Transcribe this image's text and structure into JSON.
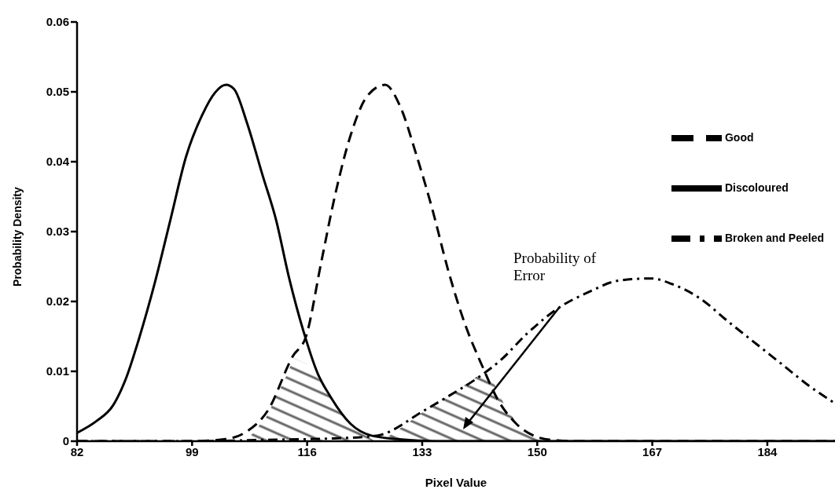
{
  "chart_data": {
    "type": "line",
    "xlabel": "Pixel Value",
    "ylabel": "Probability Density",
    "xlim": [
      82,
      194
    ],
    "xticks": [
      82,
      99,
      116,
      133,
      150,
      167,
      184
    ],
    "ylim": [
      0,
      0.06
    ],
    "yticks": [
      0,
      0.01,
      0.02,
      0.03,
      0.04,
      0.05,
      0.06
    ],
    "grid": false,
    "legend": "top right",
    "marker": "none",
    "series": [
      {
        "name": "Good",
        "color": "#000000",
        "line_style": "dashed",
        "x": [
          82,
          99,
          104,
          107.1,
          110.2,
          113.9,
          115.8,
          118.1,
          120.1,
          122.4,
          124.8,
          127.5,
          129.8,
          132.1,
          134.5,
          136.8,
          139.2,
          141.9,
          144.2,
          146.9,
          150,
          153,
          156,
          194
        ],
        "values": [
          0,
          0,
          0.0003,
          0.0014,
          0.0044,
          0.0122,
          0.0149,
          0.0257,
          0.0351,
          0.0437,
          0.0493,
          0.051,
          0.0478,
          0.0411,
          0.0332,
          0.0246,
          0.0171,
          0.0107,
          0.0059,
          0.0025,
          0.0006,
          0.0001,
          0,
          0
        ]
      },
      {
        "name": "Discoloured",
        "color": "#000000",
        "line_style": "solid",
        "x": [
          82,
          84.9,
          87.3,
          89.2,
          91.1,
          93.5,
          95.8,
          98.1,
          100.5,
          102.4,
          104,
          105.2,
          107.1,
          109.4,
          111.4,
          113.3,
          115.5,
          117.6,
          119.3,
          122.4,
          125.5,
          129.4,
          135,
          194
        ],
        "values": [
          0.0012,
          0.0029,
          0.0051,
          0.0089,
          0.0145,
          0.0227,
          0.0317,
          0.0407,
          0.0467,
          0.0499,
          0.051,
          0.0504,
          0.0456,
          0.0381,
          0.0317,
          0.0235,
          0.0156,
          0.0096,
          0.0066,
          0.0025,
          0.0008,
          0.0003,
          0,
          0
        ]
      },
      {
        "name": "Broken and Peeled",
        "color": "#000000",
        "line_style": "dashdot",
        "x": [
          82,
          100,
          110,
          120,
          126.3,
          133.3,
          136.8,
          141.1,
          144.6,
          148.5,
          153.2,
          157.5,
          162.1,
          166.8,
          169.9,
          173.8,
          178.5,
          182.4,
          186.3,
          190.2,
          193.7
        ],
        "values": [
          0,
          0,
          0.0002,
          0.0004,
          0.0008,
          0.0044,
          0.0064,
          0.009,
          0.0116,
          0.0154,
          0.0191,
          0.0213,
          0.023,
          0.0233,
          0.0225,
          0.0206,
          0.0169,
          0.0139,
          0.0109,
          0.0079,
          0.0056
        ]
      },
      {
        "type": "area",
        "color": "#000000",
        "x": [
          107,
          110,
          113,
          114,
          116,
          118,
          120,
          122,
          124,
          126
        ],
        "values": [
          0,
          0.0035,
          0.0095,
          0.0119,
          0.011,
          0.0085,
          0.0055,
          0.003,
          0.0012,
          0
        ]
      },
      {
        "type": "area",
        "color": "#000000",
        "x": [
          127,
          130,
          134,
          138,
          141,
          143,
          145,
          147,
          150,
          152
        ],
        "values": [
          0,
          0.002,
          0.0048,
          0.0072,
          0.0092,
          0.0095,
          0.0055,
          0.0025,
          0.0006,
          0
        ]
      }
    ],
    "annotations": [
      "Probability of Error"
    ]
  }
}
